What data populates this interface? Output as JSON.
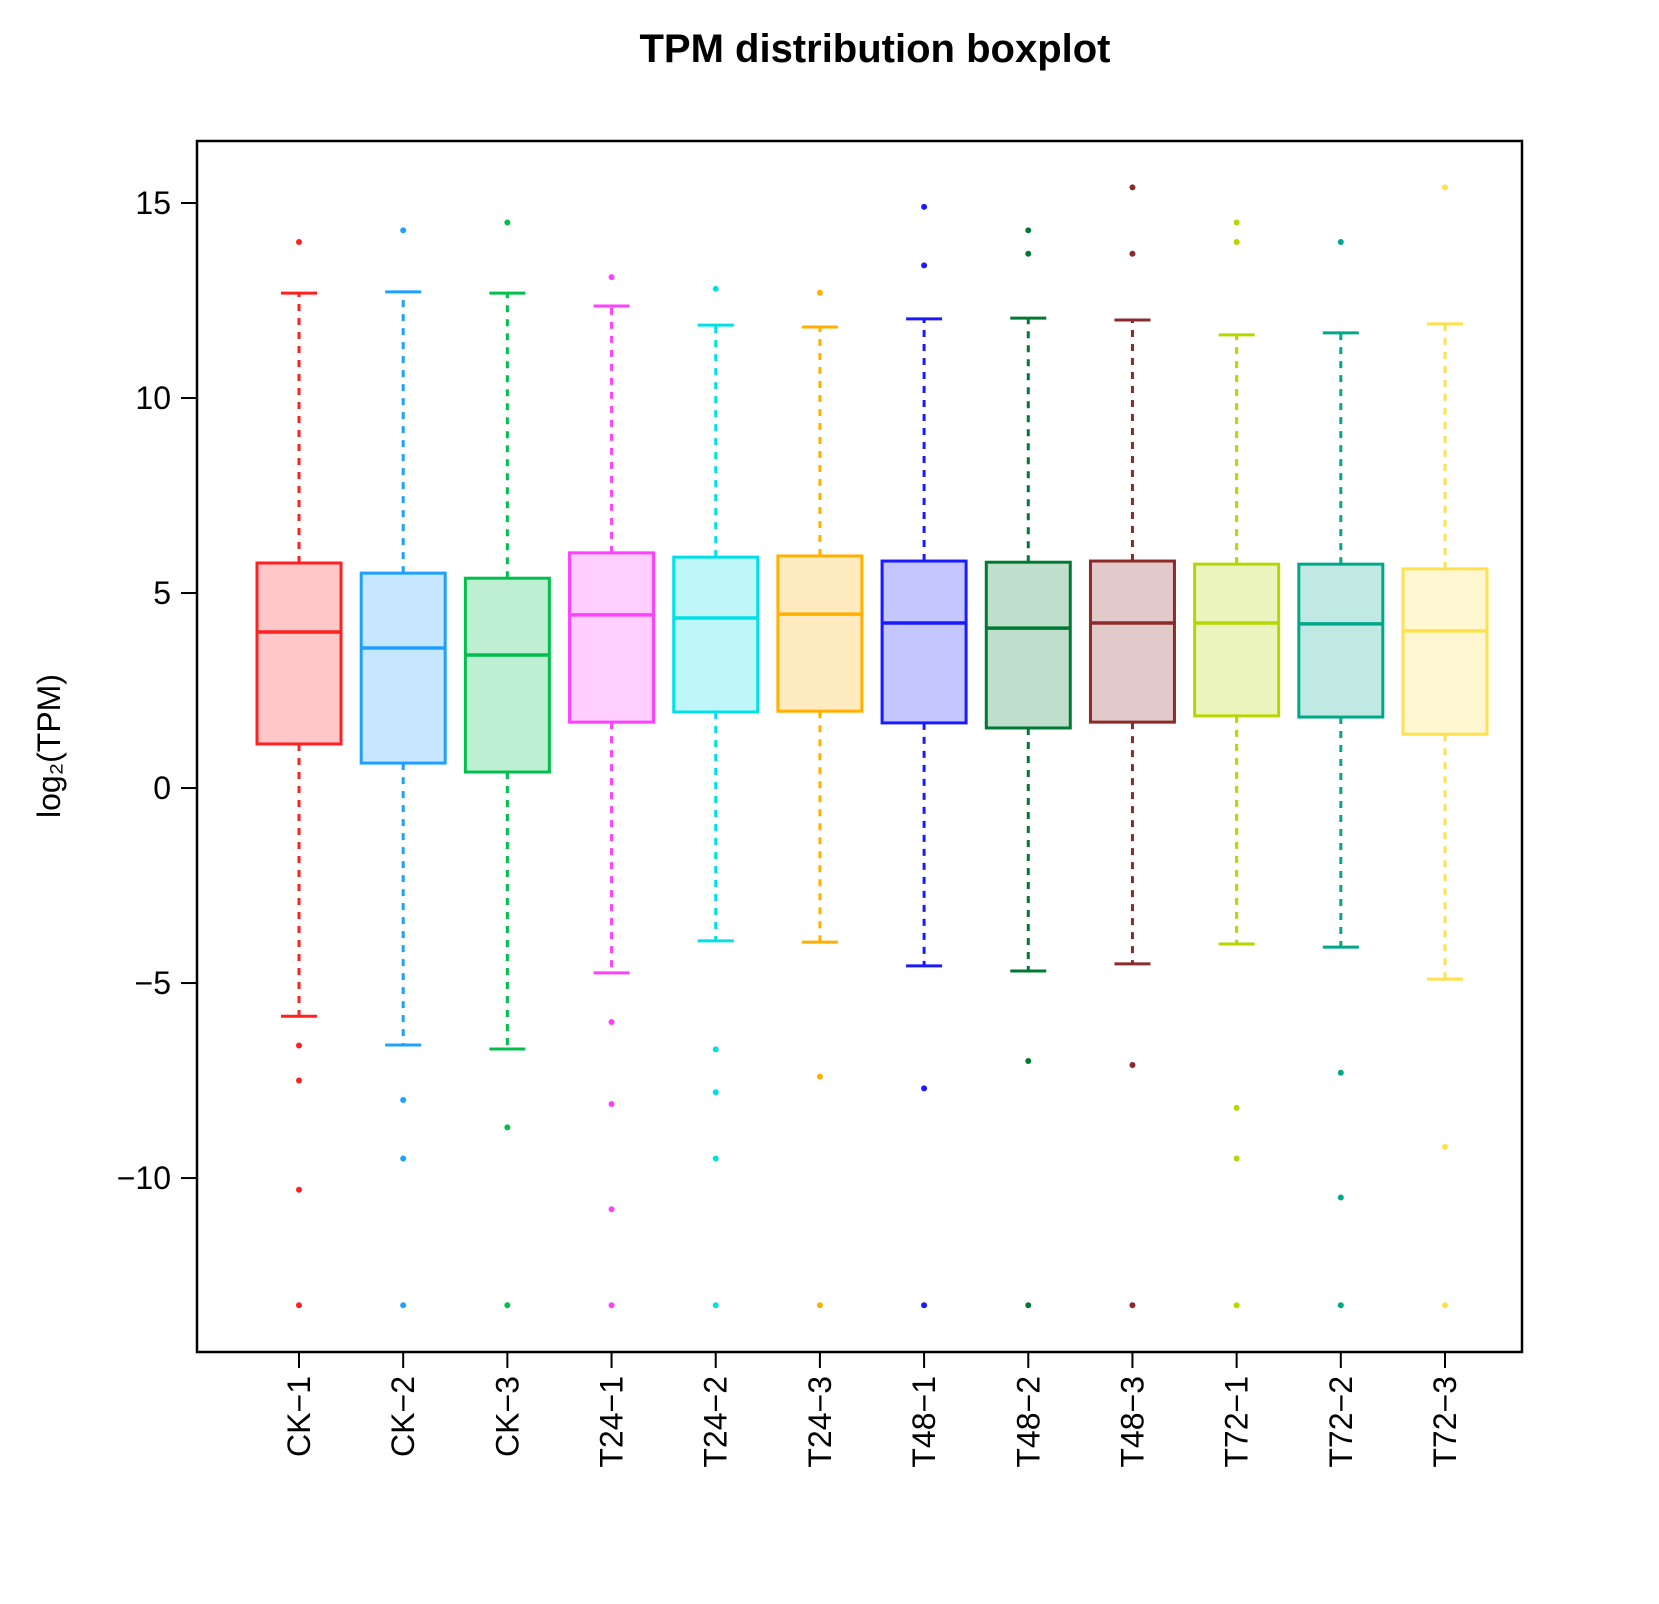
{
  "chart_data": {
    "type": "boxplot",
    "title": "TPM distribution boxplot",
    "y_label": "log₂(TPM)",
    "categories": [
      "CK−1",
      "CK−2",
      "CK−3",
      "T24−1",
      "T24−2",
      "T24−3",
      "T48−1",
      "T48−2",
      "T48−3",
      "T72−1",
      "T72−2",
      "T72−3"
    ],
    "ylim": [
      -14.46,
      16.59
    ],
    "yticks": [
      {
        "value": -10,
        "label": "−10"
      },
      {
        "value": -5,
        "label": "−5"
      },
      0,
      5,
      10,
      15
    ],
    "boxes": [
      {
        "color": "#ff2020",
        "whisker_low": -5.85,
        "q1": 1.13,
        "median": 4.0,
        "q3": 5.77,
        "whisker_high": 12.69,
        "outliers": [
          14.0,
          -6.6,
          -7.5,
          -10.3,
          -13.26
        ]
      },
      {
        "color": "#1ea0ff",
        "whisker_low": -6.59,
        "q1": 0.64,
        "median": 3.59,
        "q3": 5.51,
        "whisker_high": 12.72,
        "outliers": [
          14.3,
          -8.0,
          -9.5,
          -13.26
        ]
      },
      {
        "color": "#00c04b",
        "whisker_low": -6.69,
        "q1": 0.41,
        "median": 3.41,
        "q3": 5.38,
        "whisker_high": 12.69,
        "outliers": [
          14.5,
          -8.7,
          -13.26
        ]
      },
      {
        "color": "#ff40ff",
        "whisker_low": -4.74,
        "q1": 1.69,
        "median": 4.44,
        "q3": 6.03,
        "whisker_high": 12.36,
        "outliers": [
          13.1,
          -6.0,
          -8.1,
          -10.8,
          -13.26
        ]
      },
      {
        "color": "#00e0e6",
        "whisker_low": -3.92,
        "q1": 1.95,
        "median": 4.36,
        "q3": 5.92,
        "whisker_high": 11.87,
        "outliers": [
          12.8,
          -6.7,
          -7.8,
          -9.5,
          -13.26
        ]
      },
      {
        "color": "#ffb000",
        "whisker_low": -3.95,
        "q1": 1.97,
        "median": 4.46,
        "q3": 5.95,
        "whisker_high": 11.82,
        "outliers": [
          12.7,
          -7.4,
          -13.26
        ]
      },
      {
        "color": "#1a1aff",
        "whisker_low": -4.56,
        "q1": 1.67,
        "median": 4.23,
        "q3": 5.82,
        "whisker_high": 12.03,
        "outliers": [
          14.9,
          13.4,
          -7.7,
          -13.26
        ]
      },
      {
        "color": "#007a33",
        "whisker_low": -4.69,
        "q1": 1.54,
        "median": 4.1,
        "q3": 5.79,
        "whisker_high": 12.05,
        "outliers": [
          14.3,
          13.7,
          -7.0,
          -13.26
        ]
      },
      {
        "color": "#8b2a2a",
        "whisker_low": -4.51,
        "q1": 1.69,
        "median": 4.23,
        "q3": 5.82,
        "whisker_high": 12.0,
        "outliers": [
          15.4,
          13.7,
          -7.1,
          -13.26
        ]
      },
      {
        "color": "#b7d600",
        "whisker_low": -4.0,
        "q1": 1.85,
        "median": 4.23,
        "q3": 5.74,
        "whisker_high": 11.62,
        "outliers": [
          14.5,
          14.0,
          -8.2,
          -9.5,
          -13.26
        ]
      },
      {
        "color": "#00a88a",
        "whisker_low": -4.08,
        "q1": 1.82,
        "median": 4.21,
        "q3": 5.74,
        "whisker_high": 11.67,
        "outliers": [
          14.0,
          -7.3,
          -10.5,
          -13.26
        ]
      },
      {
        "color": "#ffe14d",
        "whisker_low": -4.9,
        "q1": 1.38,
        "median": 4.03,
        "q3": 5.62,
        "whisker_high": 11.9,
        "outliers": [
          15.4,
          -9.2,
          -13.26
        ]
      }
    ]
  }
}
